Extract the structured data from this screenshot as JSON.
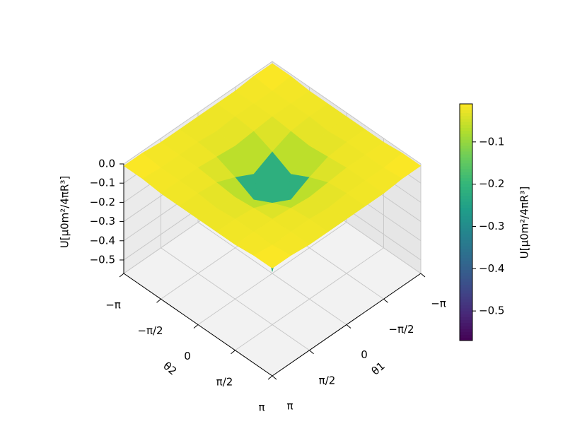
{
  "chart_data": {
    "type": "surface",
    "xlabel": "θ1",
    "ylabel": "θ2",
    "zlabel": "U[μ0m²/4πR³]",
    "x": [
      -3.1416,
      -2.3562,
      -1.5708,
      -0.7854,
      0,
      0.7854,
      1.5708,
      2.3562,
      3.1416
    ],
    "y": [
      -3.1416,
      -2.3562,
      -1.5708,
      -0.7854,
      0,
      0.7854,
      1.5708,
      2.3562,
      3.1416
    ],
    "z": [
      [
        -0.01,
        -0.01,
        -0.02,
        -0.02,
        -0.02,
        -0.02,
        -0.02,
        -0.01,
        -0.01
      ],
      [
        -0.01,
        -0.02,
        -0.02,
        -0.02,
        -0.03,
        -0.02,
        -0.02,
        -0.02,
        -0.01
      ],
      [
        -0.02,
        -0.02,
        -0.02,
        -0.03,
        -0.04,
        -0.03,
        -0.02,
        -0.02,
        -0.02
      ],
      [
        -0.02,
        -0.02,
        -0.03,
        -0.07,
        -0.12,
        -0.07,
        -0.03,
        -0.02,
        -0.02
      ],
      [
        -0.02,
        -0.03,
        -0.04,
        -0.12,
        -0.56,
        -0.12,
        -0.04,
        -0.03,
        -0.02
      ],
      [
        -0.02,
        -0.02,
        -0.03,
        -0.07,
        -0.12,
        -0.07,
        -0.03,
        -0.02,
        -0.02
      ],
      [
        -0.02,
        -0.02,
        -0.02,
        -0.03,
        -0.04,
        -0.03,
        -0.02,
        -0.02,
        -0.02
      ],
      [
        -0.01,
        -0.02,
        -0.02,
        -0.02,
        -0.03,
        -0.02,
        -0.02,
        -0.02,
        -0.01
      ],
      [
        -0.01,
        -0.01,
        -0.02,
        -0.02,
        -0.02,
        -0.02,
        -0.02,
        -0.01,
        -0.01
      ]
    ],
    "xlim": [
      -3.1416,
      3.1416
    ],
    "ylim": [
      -3.1416,
      3.1416
    ],
    "zlim": [
      -0.57,
      0
    ],
    "xticks": [
      {
        "value": -3.1416,
        "label": "−π"
      },
      {
        "value": -1.5708,
        "label": "−π/2"
      },
      0,
      {
        "value": 1.5708,
        "label": "π/2"
      },
      {
        "value": 3.1416,
        "label": "π"
      }
    ],
    "yticks": [
      {
        "value": -3.1416,
        "label": "−π"
      },
      {
        "value": -1.5708,
        "label": "−π/2"
      },
      0,
      {
        "value": 1.5708,
        "label": "π/2"
      },
      {
        "value": 3.1416,
        "label": "π"
      }
    ],
    "zticks": [
      {
        "value": 0,
        "label": "0.0"
      },
      {
        "value": -0.1,
        "label": "−0.1"
      },
      {
        "value": -0.2,
        "label": "−0.2"
      },
      {
        "value": -0.3,
        "label": "−0.3"
      },
      {
        "value": -0.4,
        "label": "−0.4"
      },
      {
        "value": -0.5,
        "label": "−0.5"
      }
    ],
    "colormap": "viridis",
    "colorbar": {
      "label": "U[μ0m²/4πR³]",
      "clim": [
        -0.57,
        -0.01
      ],
      "ticks": [
        {
          "value": -0.1,
          "label": "−0.1"
        },
        {
          "value": -0.2,
          "label": "−0.2"
        },
        {
          "value": -0.3,
          "label": "−0.3"
        },
        {
          "value": -0.4,
          "label": "−0.4"
        },
        {
          "value": -0.5,
          "label": "−0.5"
        }
      ]
    }
  }
}
